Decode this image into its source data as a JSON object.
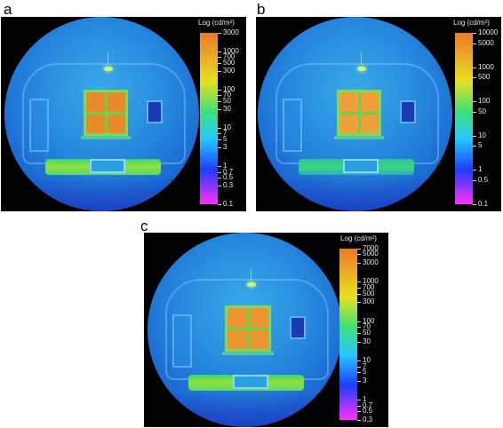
{
  "panels": [
    {
      "label": "a",
      "scale_title": "Log (cd/m²)",
      "ticks": [
        {
          "text": "3000",
          "value": 3000
        },
        {
          "text": "1000",
          "value": 1000
        },
        {
          "text": "700",
          "value": 700
        },
        {
          "text": "500",
          "value": 500
        },
        {
          "text": "300",
          "value": 300
        },
        {
          "text": "100",
          "value": 100
        },
        {
          "text": "70",
          "value": 70
        },
        {
          "text": "50",
          "value": 50
        },
        {
          "text": "30",
          "value": 30
        },
        {
          "text": "10",
          "value": 10
        },
        {
          "text": "7",
          "value": 7
        },
        {
          "text": "5",
          "value": 5
        },
        {
          "text": "3",
          "value": 3
        },
        {
          "text": "1",
          "value": 1
        },
        {
          "text": "0.7",
          "value": 0.7
        },
        {
          "text": "0.5",
          "value": 0.5
        },
        {
          "text": "0.3",
          "value": 0.3
        },
        {
          "text": "0.1",
          "value": 0.1
        }
      ],
      "range": [
        0.1,
        3000
      ]
    },
    {
      "label": "b",
      "scale_title": "Log (cd/m²)",
      "ticks": [
        {
          "text": "10000",
          "value": 10000
        },
        {
          "text": "5000",
          "value": 5000
        },
        {
          "text": "1000",
          "value": 1000
        },
        {
          "text": "500",
          "value": 500
        },
        {
          "text": "100",
          "value": 100
        },
        {
          "text": "50",
          "value": 50
        },
        {
          "text": "10",
          "value": 10
        },
        {
          "text": "5",
          "value": 5
        },
        {
          "text": "1",
          "value": 1
        },
        {
          "text": "0.5",
          "value": 0.5
        },
        {
          "text": "0.1",
          "value": 0.1
        }
      ],
      "range": [
        0.1,
        10000
      ]
    },
    {
      "label": "c",
      "scale_title": "Log (cd/m²)",
      "ticks": [
        {
          "text": "7000",
          "value": 7000
        },
        {
          "text": "5000",
          "value": 5000
        },
        {
          "text": "3000",
          "value": 3000
        },
        {
          "text": "1000",
          "value": 1000
        },
        {
          "text": "700",
          "value": 700
        },
        {
          "text": "500",
          "value": 500
        },
        {
          "text": "300",
          "value": 300
        },
        {
          "text": "100",
          "value": 100
        },
        {
          "text": "70",
          "value": 70
        },
        {
          "text": "50",
          "value": 50
        },
        {
          "text": "30",
          "value": 30
        },
        {
          "text": "10",
          "value": 10
        },
        {
          "text": "7",
          "value": 7
        },
        {
          "text": "5",
          "value": 5
        },
        {
          "text": "3",
          "value": 3
        },
        {
          "text": "1",
          "value": 1
        },
        {
          "text": "0.7",
          "value": 0.7
        },
        {
          "text": "0.5",
          "value": 0.5
        },
        {
          "text": "0.3",
          "value": 0.3
        }
      ],
      "range": [
        0.3,
        7000
      ]
    }
  ],
  "colors": {
    "panel_bg": "#000000",
    "scale_low": "#ff30ff",
    "scale_mid_low": "#1e3cff",
    "scale_mid": "#27c8ff",
    "scale_mid_high": "#3fe07a",
    "scale_high": "#e6e020",
    "scale_top": "#ec7a28"
  }
}
